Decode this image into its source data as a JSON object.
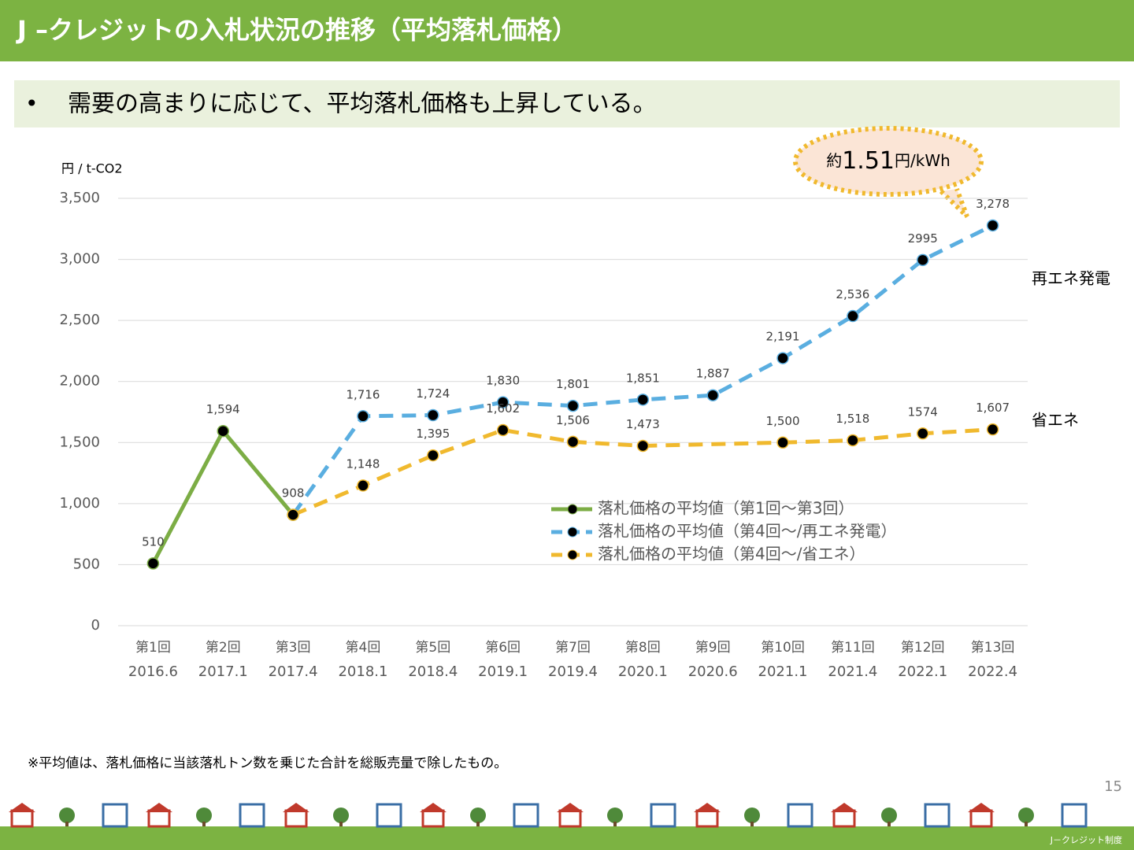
{
  "header": {
    "title": "J –クレジットの入札状況の推移（平均落札価格）",
    "bullet": "•",
    "subtitle": "需要の高まりに応じて、平均落札価格も上昇している。"
  },
  "chart_data": {
    "type": "line",
    "y_axis_label": "円 / t-CO2",
    "categories": [
      [
        "第1回",
        "2016.6"
      ],
      [
        "第2回",
        "2017.1"
      ],
      [
        "第3回",
        "2017.4"
      ],
      [
        "第4回",
        "2018.1"
      ],
      [
        "第5回",
        "2018.4"
      ],
      [
        "第6回",
        "2019.1"
      ],
      [
        "第7回",
        "2019.4"
      ],
      [
        "第8回",
        "2020.1"
      ],
      [
        "第9回",
        "2020.6"
      ],
      [
        "第10回",
        "2021.1"
      ],
      [
        "第11回",
        "2021.4"
      ],
      [
        "第12回",
        "2022.1"
      ],
      [
        "第13回",
        "2022.4"
      ]
    ],
    "series": [
      {
        "name": "落札価格の平均値（第1回～第3回）",
        "color": "#7cad45",
        "dashed": false,
        "values": [
          510,
          1594,
          908,
          null,
          null,
          null,
          null,
          null,
          null,
          null,
          null,
          null,
          null
        ],
        "value_labels": [
          "510",
          "1,594",
          "908",
          null,
          null,
          null,
          null,
          null,
          null,
          null,
          null,
          null,
          null
        ]
      },
      {
        "name": "落札価格の平均値（第4回～/再エネ発電）",
        "color": "#5aaee0",
        "dashed": true,
        "values": [
          null,
          null,
          908,
          1716,
          1724,
          1830,
          1801,
          1851,
          1887,
          2191,
          2536,
          2995,
          3278
        ],
        "value_labels": [
          null,
          null,
          null,
          "1,716",
          "1,724",
          "1,830",
          "1,801",
          "1,851",
          "1,887",
          "2,191",
          "2,536",
          "2995",
          "3,278"
        ]
      },
      {
        "name": "落札価格の平均値（第4回～/省エネ）",
        "color": "#f0b92e",
        "dashed": true,
        "values": [
          null,
          null,
          908,
          1148,
          1395,
          1602,
          1506,
          1473,
          null,
          1500,
          1518,
          1574,
          1607
        ],
        "value_labels": [
          null,
          null,
          null,
          "1,148",
          "1,395",
          "1,602",
          "1,506",
          "1,473",
          null,
          "1,500",
          "1,518",
          "1574",
          "1,607"
        ]
      }
    ],
    "ylim": [
      0,
      3500
    ],
    "yticks": [
      0,
      500,
      {
        "value": 1000,
        "label": "1,000"
      },
      {
        "value": 1500,
        "label": "1,500"
      },
      {
        "value": 2000,
        "label": "2,000"
      },
      {
        "value": 2500,
        "label": "2,500"
      },
      {
        "value": 3000,
        "label": "3,000"
      },
      {
        "value": 3500,
        "label": "3,500"
      }
    ],
    "grid": true,
    "connect_gaps": true,
    "annotations": [
      "再エネ発電",
      "省エネ"
    ],
    "callout": [
      "約",
      "1.51",
      "円/kWh"
    ]
  },
  "footer": {
    "note": "※平均値は、落札価格に当該落札トン数を乗じた合計を総販売量で除したもの。",
    "page": "15",
    "brand": "J－クレジット制度"
  }
}
